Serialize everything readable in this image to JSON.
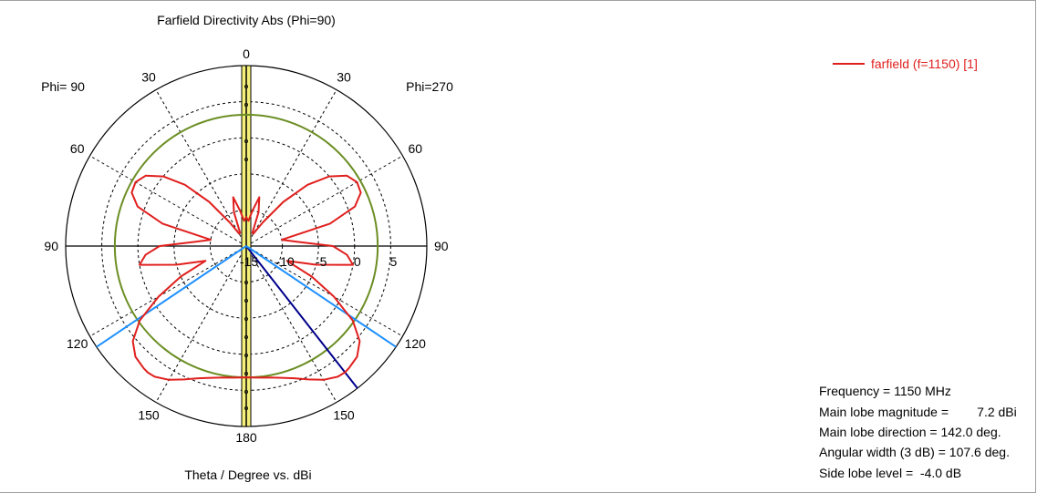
{
  "chart_data": {
    "type": "polar",
    "title": "Farfield Directivity Abs (Phi=90)",
    "xlabel": "Theta / Degree vs. dBi",
    "left_label": "Phi= 90",
    "right_label": "Phi=270",
    "angle_ticks": [
      {
        "angle": 0,
        "label": "0"
      },
      {
        "angle": 30,
        "label": "30"
      },
      {
        "angle": 60,
        "label": "60"
      },
      {
        "angle": 90,
        "label": "90"
      },
      {
        "angle": 120,
        "label": "120"
      },
      {
        "angle": 150,
        "label": "150"
      },
      {
        "angle": 180,
        "label": "180"
      },
      {
        "angle": -30,
        "label": "30"
      },
      {
        "angle": -60,
        "label": "60"
      },
      {
        "angle": -90,
        "label": "90"
      },
      {
        "angle": -120,
        "label": "120"
      },
      {
        "angle": -150,
        "label": "150"
      }
    ],
    "radial_range": [
      -15,
      10
    ],
    "radial_ticks": [
      -15,
      -10,
      -5,
      0,
      5
    ],
    "radial_tick_labels": [
      "-15",
      "-10",
      "-5",
      "0",
      "5"
    ],
    "grid": true,
    "series": [
      {
        "name": "farfield (f=1150) [1]",
        "color": "#e0201e",
        "theta": [
          0,
          5,
          10,
          15,
          20,
          25,
          30,
          35,
          40,
          45,
          50,
          55,
          60,
          65,
          70,
          75,
          80,
          85,
          90,
          95,
          100,
          105,
          110,
          115,
          120,
          125,
          130,
          135,
          140,
          142,
          145,
          150,
          155,
          160,
          165,
          170,
          175,
          180
        ],
        "values": [
          -11,
          -11.5,
          -10,
          -8,
          -10,
          -13,
          -13,
          -11,
          -7,
          -3,
          0,
          2,
          2.7,
          2.5,
          1,
          -3,
          -10,
          -8,
          -3,
          -1,
          0,
          -5,
          -9,
          -5,
          -1,
          3,
          5.5,
          6.7,
          7.1,
          7.2,
          7.1,
          6.4,
          5.4,
          4.5,
          3.9,
          3.5,
          3.3,
          3.2
        ]
      }
    ],
    "reference_circle": {
      "value": 3.2,
      "color": "#6b8e23"
    },
    "markers": [
      {
        "kind": "main-lobe",
        "theta": 142,
        "color": "#00008b"
      },
      {
        "kind": "beamwidth-3db",
        "theta": 124,
        "color": "#1e90ff"
      },
      {
        "kind": "beamwidth-3db",
        "theta": -124,
        "color": "#1e90ff"
      }
    ],
    "info": [
      {
        "label": "Frequency",
        "value": "= 1150 MHz"
      },
      {
        "label": "Main lobe magnitude",
        "value": "=        7.2 dBi"
      },
      {
        "label": "Main lobe direction",
        "value": "= 142.0 deg."
      },
      {
        "label": "Angular width (3 dB)",
        "value": "= 107.6 deg."
      },
      {
        "label": "Side lobe level",
        "value": "=  -4.0 dB"
      }
    ]
  }
}
